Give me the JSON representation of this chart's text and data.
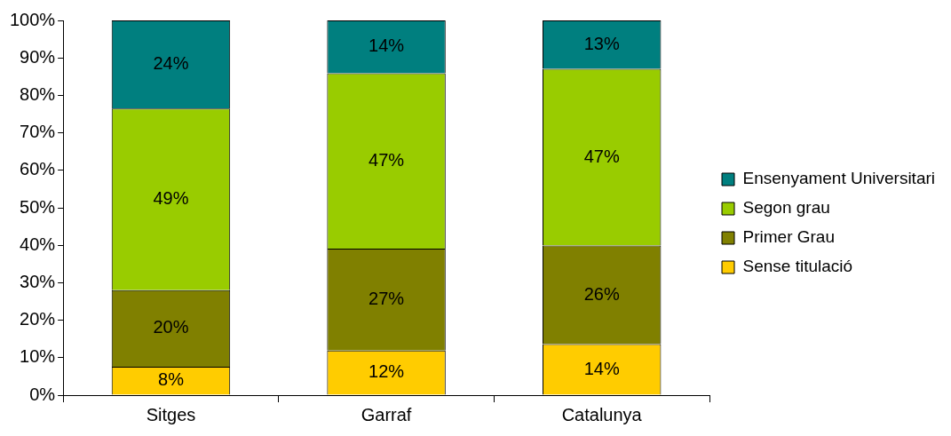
{
  "chart_data": {
    "type": "bar",
    "stacked": true,
    "categories": [
      "Sitges",
      "Garraf",
      "Catalunya"
    ],
    "ylim": [
      0,
      100
    ],
    "yticks": [
      {
        "value": 0,
        "label": "0%"
      },
      {
        "value": 10,
        "label": "10%"
      },
      {
        "value": 20,
        "label": "20%"
      },
      {
        "value": 30,
        "label": "30%"
      },
      {
        "value": 40,
        "label": "40%"
      },
      {
        "value": 50,
        "label": "50%"
      },
      {
        "value": 60,
        "label": "60%"
      },
      {
        "value": 70,
        "label": "70%"
      },
      {
        "value": 80,
        "label": "80%"
      },
      {
        "value": 90,
        "label": "90%"
      },
      {
        "value": 100,
        "label": "100%"
      }
    ],
    "grid": false,
    "legend": "right",
    "series": [
      {
        "name": "Sense titulació",
        "color": "#ffcc00",
        "values": [
          7.6,
          11.9,
          13.6
        ],
        "value_labels": [
          "8%",
          "12%",
          "14%"
        ]
      },
      {
        "name": "Primer Grau",
        "color": "#808000",
        "values": [
          20.4,
          27.2,
          26.3
        ],
        "value_labels": [
          "20%",
          "27%",
          "26%"
        ]
      },
      {
        "name": "Segon grau",
        "color": "#99cc00",
        "values": [
          48.5,
          46.8,
          47.2
        ],
        "value_labels": [
          "49%",
          "47%",
          "47%"
        ]
      },
      {
        "name": "Ensenyament Universitari",
        "color": "#007f7f",
        "values": [
          23.5,
          14.1,
          12.9
        ],
        "value_labels": [
          "24%",
          "14%",
          "13%"
        ]
      }
    ]
  }
}
